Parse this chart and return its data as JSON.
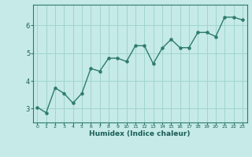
{
  "x": [
    0,
    1,
    2,
    3,
    4,
    5,
    6,
    7,
    8,
    9,
    10,
    11,
    12,
    13,
    14,
    15,
    16,
    17,
    18,
    19,
    20,
    21,
    22,
    23
  ],
  "y": [
    3.05,
    2.85,
    3.75,
    3.55,
    3.2,
    3.55,
    4.45,
    4.35,
    4.82,
    4.82,
    4.7,
    5.27,
    5.27,
    4.62,
    5.18,
    5.5,
    5.2,
    5.2,
    5.75,
    5.75,
    5.6,
    6.3,
    6.3,
    6.2
  ],
  "xlabel": "Humidex (Indice chaleur)",
  "line_color": "#2e7b6f",
  "marker_color": "#2e7b6f",
  "bg_color": "#c5eae7",
  "grid_color": "#a0d4d0",
  "xlim": [
    -0.5,
    23.5
  ],
  "ylim": [
    2.5,
    6.75
  ],
  "yticks": [
    3,
    4,
    5,
    6
  ],
  "xticks": [
    0,
    1,
    2,
    3,
    4,
    5,
    6,
    7,
    8,
    9,
    10,
    11,
    12,
    13,
    14,
    15,
    16,
    17,
    18,
    19,
    20,
    21,
    22,
    23
  ]
}
